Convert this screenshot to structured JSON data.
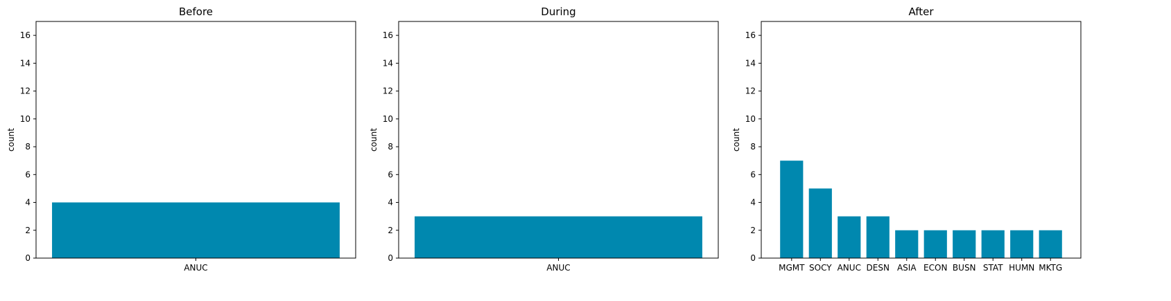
{
  "figure": {
    "bar_color": "#0088AF",
    "axis_color": "#000000",
    "background": "#ffffff"
  },
  "chart_data": [
    {
      "type": "bar",
      "title": "Before",
      "xlabel": "",
      "ylabel": "count",
      "ylim": [
        0,
        17
      ],
      "yticks": [
        0,
        2,
        4,
        6,
        8,
        10,
        12,
        14,
        16
      ],
      "categories": [
        "ANUC"
      ],
      "values": [
        4
      ]
    },
    {
      "type": "bar",
      "title": "During",
      "xlabel": "",
      "ylabel": "count",
      "ylim": [
        0,
        17
      ],
      "yticks": [
        0,
        2,
        4,
        6,
        8,
        10,
        12,
        14,
        16
      ],
      "categories": [
        "ANUC"
      ],
      "values": [
        3
      ]
    },
    {
      "type": "bar",
      "title": "After",
      "xlabel": "",
      "ylabel": "count",
      "ylim": [
        0,
        17
      ],
      "yticks": [
        0,
        2,
        4,
        6,
        8,
        10,
        12,
        14,
        16
      ],
      "categories": [
        "MGMT",
        "SOCY",
        "ANUC",
        "DESN",
        "ASIA",
        "ECON",
        "BUSN",
        "STAT",
        "HUMN",
        "MKTG"
      ],
      "values": [
        7,
        5,
        3,
        3,
        2,
        2,
        2,
        2,
        2,
        2
      ]
    }
  ]
}
